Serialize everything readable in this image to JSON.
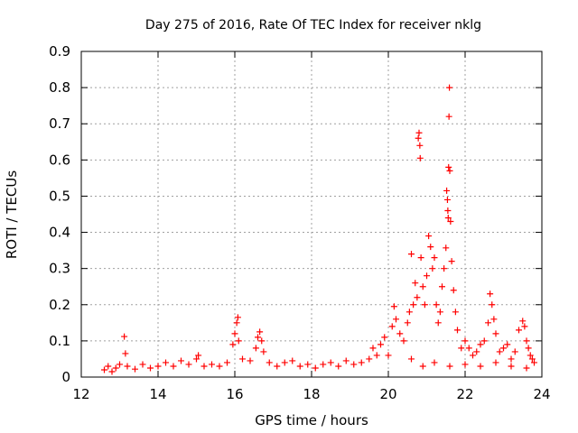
{
  "chart_data": {
    "type": "scatter",
    "title": "Day 275 of 2016, Rate Of TEC Index for receiver nklg",
    "xlabel": "GPS time / hours",
    "ylabel": "ROTI / TECUs",
    "xlim": [
      12,
      24
    ],
    "ylim": [
      0,
      0.9
    ],
    "x_ticks": [
      12,
      14,
      16,
      18,
      20,
      22,
      24
    ],
    "x_tick_labels": [
      "12",
      "14",
      "16",
      "18",
      "20",
      "22",
      "24"
    ],
    "y_ticks": [
      0,
      0.1,
      0.2,
      0.3,
      0.4,
      0.5,
      0.6,
      0.7,
      0.8,
      0.9
    ],
    "y_tick_labels": [
      "0",
      "0.1",
      "0.2",
      "0.3",
      "0.4",
      "0.5",
      "0.6",
      "0.7",
      "0.8",
      "0.9"
    ],
    "grid": true,
    "marker": "+",
    "marker_color": "#ff0000",
    "series": [
      {
        "name": "ROTI",
        "points": [
          [
            12.6,
            0.02
          ],
          [
            12.7,
            0.03
          ],
          [
            12.8,
            0.015
          ],
          [
            12.9,
            0.025
          ],
          [
            13.0,
            0.035
          ],
          [
            13.12,
            0.112
          ],
          [
            13.15,
            0.065
          ],
          [
            13.2,
            0.03
          ],
          [
            13.4,
            0.022
          ],
          [
            13.6,
            0.035
          ],
          [
            13.8,
            0.025
          ],
          [
            14.0,
            0.03
          ],
          [
            14.2,
            0.04
          ],
          [
            14.4,
            0.03
          ],
          [
            14.6,
            0.045
          ],
          [
            14.8,
            0.035
          ],
          [
            15.0,
            0.05
          ],
          [
            15.05,
            0.06
          ],
          [
            15.2,
            0.03
          ],
          [
            15.4,
            0.035
          ],
          [
            15.6,
            0.03
          ],
          [
            15.8,
            0.04
          ],
          [
            15.95,
            0.09
          ],
          [
            16.0,
            0.12
          ],
          [
            16.05,
            0.15
          ],
          [
            16.08,
            0.165
          ],
          [
            16.1,
            0.1
          ],
          [
            16.2,
            0.05
          ],
          [
            16.4,
            0.045
          ],
          [
            16.55,
            0.08
          ],
          [
            16.6,
            0.11
          ],
          [
            16.65,
            0.125
          ],
          [
            16.7,
            0.1
          ],
          [
            16.75,
            0.07
          ],
          [
            16.9,
            0.04
          ],
          [
            17.1,
            0.03
          ],
          [
            17.3,
            0.04
          ],
          [
            17.5,
            0.045
          ],
          [
            17.7,
            0.03
          ],
          [
            17.9,
            0.035
          ],
          [
            18.1,
            0.025
          ],
          [
            18.3,
            0.035
          ],
          [
            18.5,
            0.04
          ],
          [
            18.7,
            0.03
          ],
          [
            18.9,
            0.045
          ],
          [
            19.1,
            0.035
          ],
          [
            19.3,
            0.04
          ],
          [
            19.5,
            0.05
          ],
          [
            19.6,
            0.08
          ],
          [
            19.7,
            0.06
          ],
          [
            19.8,
            0.09
          ],
          [
            19.9,
            0.11
          ],
          [
            20.0,
            0.06
          ],
          [
            20.1,
            0.14
          ],
          [
            20.15,
            0.195
          ],
          [
            20.2,
            0.16
          ],
          [
            20.3,
            0.12
          ],
          [
            20.4,
            0.1
          ],
          [
            20.5,
            0.15
          ],
          [
            20.55,
            0.18
          ],
          [
            20.6,
            0.34
          ],
          [
            20.65,
            0.2
          ],
          [
            20.7,
            0.26
          ],
          [
            20.75,
            0.22
          ],
          [
            20.78,
            0.66
          ],
          [
            20.8,
            0.675
          ],
          [
            20.82,
            0.64
          ],
          [
            20.83,
            0.605
          ],
          [
            20.85,
            0.33
          ],
          [
            20.9,
            0.25
          ],
          [
            20.95,
            0.2
          ],
          [
            21.0,
            0.28
          ],
          [
            21.05,
            0.39
          ],
          [
            21.1,
            0.36
          ],
          [
            21.15,
            0.3
          ],
          [
            21.2,
            0.33
          ],
          [
            21.25,
            0.2
          ],
          [
            21.3,
            0.15
          ],
          [
            21.35,
            0.18
          ],
          [
            21.4,
            0.25
          ],
          [
            21.45,
            0.3
          ],
          [
            21.5,
            0.357
          ],
          [
            21.52,
            0.515
          ],
          [
            21.54,
            0.49
          ],
          [
            21.55,
            0.46
          ],
          [
            21.56,
            0.44
          ],
          [
            21.57,
            0.58
          ],
          [
            21.58,
            0.72
          ],
          [
            21.59,
            0.8
          ],
          [
            21.6,
            0.57
          ],
          [
            21.62,
            0.43
          ],
          [
            21.65,
            0.32
          ],
          [
            21.7,
            0.24
          ],
          [
            21.75,
            0.18
          ],
          [
            21.8,
            0.13
          ],
          [
            21.9,
            0.08
          ],
          [
            22.0,
            0.1
          ],
          [
            22.1,
            0.08
          ],
          [
            22.2,
            0.06
          ],
          [
            22.3,
            0.07
          ],
          [
            22.4,
            0.09
          ],
          [
            22.5,
            0.1
          ],
          [
            22.6,
            0.15
          ],
          [
            22.65,
            0.23
          ],
          [
            22.7,
            0.2
          ],
          [
            22.75,
            0.16
          ],
          [
            22.8,
            0.12
          ],
          [
            22.9,
            0.07
          ],
          [
            23.0,
            0.08
          ],
          [
            23.1,
            0.09
          ],
          [
            23.2,
            0.05
          ],
          [
            23.3,
            0.07
          ],
          [
            23.4,
            0.13
          ],
          [
            23.5,
            0.155
          ],
          [
            23.55,
            0.14
          ],
          [
            23.6,
            0.1
          ],
          [
            23.65,
            0.08
          ],
          [
            23.7,
            0.06
          ],
          [
            23.75,
            0.05
          ],
          [
            23.8,
            0.04
          ],
          [
            20.6,
            0.05
          ],
          [
            20.9,
            0.03
          ],
          [
            21.2,
            0.04
          ],
          [
            21.6,
            0.03
          ],
          [
            22.0,
            0.035
          ],
          [
            22.4,
            0.03
          ],
          [
            22.8,
            0.04
          ],
          [
            23.2,
            0.03
          ],
          [
            23.6,
            0.025
          ]
        ]
      }
    ]
  }
}
